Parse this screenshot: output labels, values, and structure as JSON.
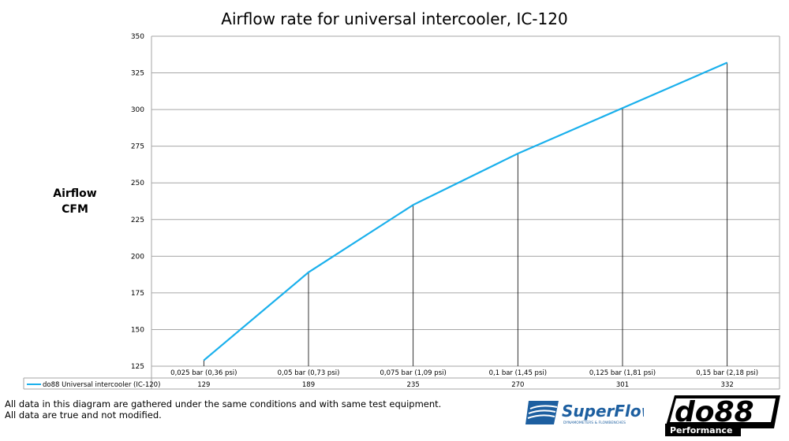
{
  "chart_data": {
    "type": "line",
    "title": "Airflow rate for universal intercooler, IC-120",
    "ylabel": "Airflow CFM",
    "ylabel_lines": [
      "Airflow",
      "CFM"
    ],
    "xlabel": "",
    "categories": [
      "0,025 bar (0,36 psi)",
      "0,05 bar (0,73 psi)",
      "0,075 bar (1,09 psi)",
      "0,1 bar (1,45 psi)",
      "0,125 bar (1,81 psi)",
      "0,15 bar (2,18 psi)"
    ],
    "series": [
      {
        "name": "do88 Universal intercooler (IC-120)",
        "values": [
          129,
          189,
          235,
          270,
          301,
          332
        ],
        "color": "#1ab0ec"
      }
    ],
    "ylim": [
      125,
      350
    ],
    "yticks": [
      125,
      150,
      175,
      200,
      225,
      250,
      275,
      300,
      325,
      350
    ],
    "grid": true,
    "legend": "data-table-below",
    "drop_lines": true
  },
  "notes": [
    "All data in this diagram are gathered under the same conditions and with same test equipment.",
    "All data are true and not modified."
  ],
  "logos": {
    "superflow": "SuperFlow",
    "superflow_sub": "DYNAMOMETERS & FLOWBENCHES",
    "do88": "do88",
    "do88_sub": "Performance"
  }
}
